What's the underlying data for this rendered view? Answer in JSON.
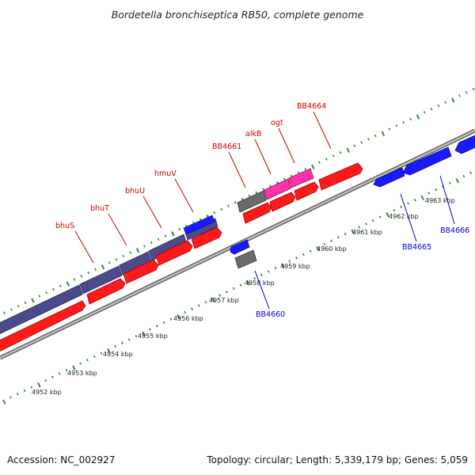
{
  "title": "Bordetella bronchiseptica RB50, complete genome",
  "footer": {
    "accession": "Accession: NC_002927",
    "summary": "Topology: circular; Length: 5,339,179 bp; Genes: 5,059"
  },
  "colors": {
    "forward_label": "#cc0000",
    "reverse_label": "#0000cc",
    "tick": "#2e8b2e",
    "backbone": "#8a8a8a",
    "red": "#ff1a1a",
    "navy": "#4a4a8c",
    "blue": "#1a1aff",
    "pink": "#ff33aa",
    "gray": "#6a6a6a"
  },
  "scale": {
    "unit": "kbp",
    "labels": [
      "4952 kbp",
      "4953 kbp",
      "4954 kbp",
      "4955 kbp",
      "4956 kbp",
      "4957 kbp",
      "4958 kbp",
      "4959 kbp",
      "4960 kbp",
      "4961 kbp",
      "4962 kbp",
      "4963 kbp"
    ]
  },
  "genes": [
    {
      "label": "bhuS",
      "strand": "forward"
    },
    {
      "label": "bhuT",
      "strand": "forward"
    },
    {
      "label": "bhuU",
      "strand": "forward"
    },
    {
      "label": "hmuV",
      "strand": "forward"
    },
    {
      "label": "BB4661",
      "strand": "forward"
    },
    {
      "label": "alkB",
      "strand": "forward"
    },
    {
      "label": "ogt",
      "strand": "forward"
    },
    {
      "label": "BB4664",
      "strand": "forward"
    },
    {
      "label": "BB4660",
      "strand": "reverse"
    },
    {
      "label": "BB4665",
      "strand": "reverse"
    },
    {
      "label": "BB4666",
      "strand": "reverse"
    }
  ]
}
